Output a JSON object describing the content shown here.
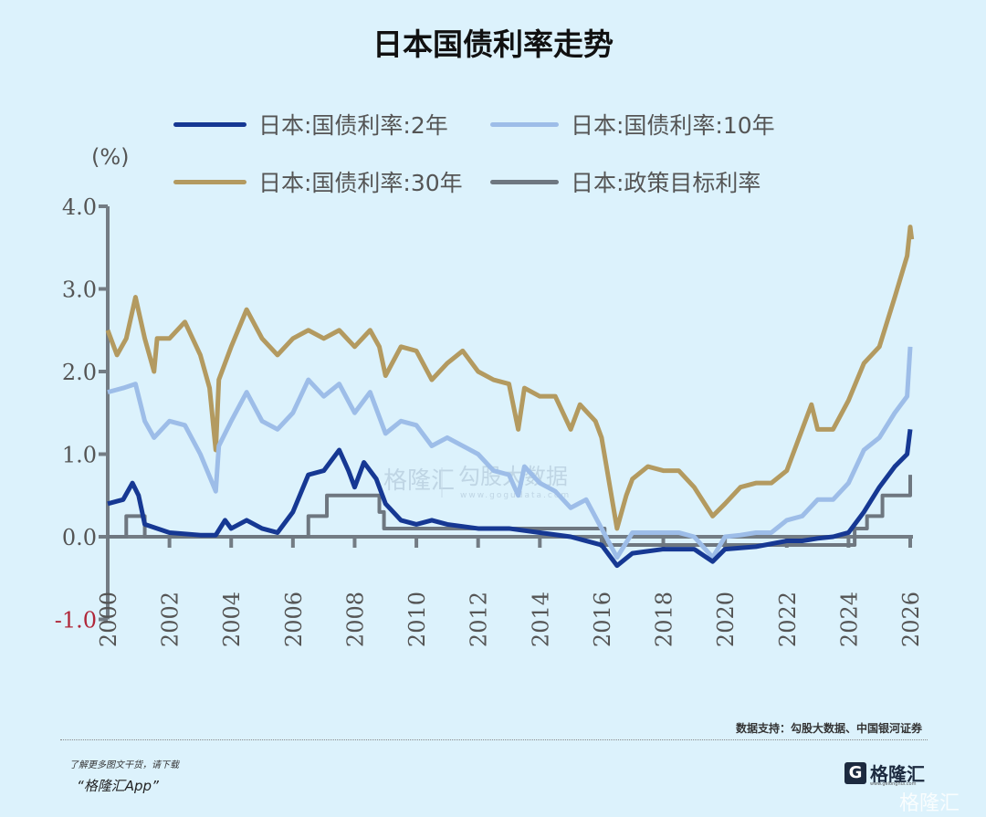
{
  "chart_data": {
    "type": "line",
    "title": "日本国债利率走势",
    "unit_label": "(%)",
    "xlim": [
      2000,
      2026
    ],
    "ylim": [
      -1.0,
      4.0
    ],
    "yticks": [
      "4.0",
      "3.0",
      "2.0",
      "1.0",
      "0.0",
      "-1.0"
    ],
    "ytick_values": [
      4.0,
      3.0,
      2.0,
      1.0,
      0.0,
      -1.0
    ],
    "xticks": [
      "2000",
      "2002",
      "2004",
      "2006",
      "2008",
      "2010",
      "2012",
      "2014",
      "2016",
      "2018",
      "2020",
      "2022",
      "2024",
      "2026"
    ],
    "grid": false,
    "legend_placement": "top",
    "series": [
      {
        "name": "日本:国债利率:2年",
        "color": "#163893",
        "x": [
          2000,
          2000.5,
          2000.8,
          2001.0,
          2001.2,
          2002.0,
          2003.0,
          2003.5,
          2003.8,
          2004.0,
          2004.5,
          2005.0,
          2005.5,
          2006.0,
          2006.5,
          2007.0,
          2007.5,
          2007.8,
          2008.0,
          2008.3,
          2008.7,
          2009.0,
          2009.5,
          2010.0,
          2010.5,
          2011.0,
          2012.0,
          2013.0,
          2014.0,
          2015.0,
          2016.0,
          2016.5,
          2017.0,
          2018.0,
          2019.0,
          2019.6,
          2020.0,
          2021.0,
          2022.0,
          2022.5,
          2023.0,
          2023.5,
          2024.0,
          2024.5,
          2025.0,
          2025.5,
          2025.9,
          2026.0
        ],
        "y": [
          0.4,
          0.45,
          0.65,
          0.5,
          0.15,
          0.05,
          0.02,
          0.02,
          0.2,
          0.1,
          0.2,
          0.1,
          0.05,
          0.3,
          0.75,
          0.8,
          1.05,
          0.8,
          0.6,
          0.9,
          0.7,
          0.4,
          0.2,
          0.15,
          0.2,
          0.15,
          0.1,
          0.1,
          0.05,
          0.0,
          -0.1,
          -0.35,
          -0.2,
          -0.15,
          -0.15,
          -0.3,
          -0.15,
          -0.12,
          -0.05,
          -0.05,
          -0.02,
          0.0,
          0.05,
          0.3,
          0.6,
          0.85,
          1.0,
          1.3
        ]
      },
      {
        "name": "日本:国债利率:10年",
        "color": "#9dbde8",
        "x": [
          2000,
          2000.5,
          2000.9,
          2001.2,
          2001.5,
          2002.0,
          2002.5,
          2003.0,
          2003.5,
          2003.6,
          2004.0,
          2004.5,
          2005.0,
          2005.5,
          2006.0,
          2006.5,
          2007.0,
          2007.5,
          2008.0,
          2008.5,
          2009.0,
          2009.5,
          2010.0,
          2010.5,
          2011.0,
          2011.5,
          2012.0,
          2012.5,
          2013.0,
          2013.3,
          2013.5,
          2014.0,
          2014.5,
          2015.0,
          2015.5,
          2016.0,
          2016.5,
          2017.0,
          2017.5,
          2018.0,
          2018.5,
          2019.0,
          2019.6,
          2020.0,
          2020.5,
          2021.0,
          2021.5,
          2022.0,
          2022.5,
          2023.0,
          2023.5,
          2024.0,
          2024.5,
          2025.0,
          2025.5,
          2025.9,
          2026.0
        ],
        "y": [
          1.75,
          1.8,
          1.85,
          1.4,
          1.2,
          1.4,
          1.35,
          1.0,
          0.55,
          1.1,
          1.4,
          1.75,
          1.4,
          1.3,
          1.5,
          1.9,
          1.7,
          1.85,
          1.5,
          1.75,
          1.25,
          1.4,
          1.35,
          1.1,
          1.2,
          1.1,
          1.0,
          0.8,
          0.75,
          0.5,
          0.85,
          0.65,
          0.55,
          0.35,
          0.45,
          0.1,
          -0.25,
          0.05,
          0.05,
          0.05,
          0.05,
          0.0,
          -0.25,
          0.0,
          0.02,
          0.05,
          0.05,
          0.2,
          0.25,
          0.45,
          0.45,
          0.65,
          1.05,
          1.2,
          1.5,
          1.7,
          2.3
        ]
      },
      {
        "name": "日本:国债利率:30年",
        "color": "#b39a60",
        "x": [
          2000,
          2000.3,
          2000.6,
          2000.9,
          2001.2,
          2001.5,
          2001.6,
          2002.0,
          2002.5,
          2003.0,
          2003.3,
          2003.5,
          2003.6,
          2004.0,
          2004.5,
          2005.0,
          2005.5,
          2006.0,
          2006.5,
          2007.0,
          2007.5,
          2008.0,
          2008.5,
          2008.8,
          2009.0,
          2009.5,
          2010.0,
          2010.5,
          2011.0,
          2011.5,
          2012.0,
          2012.5,
          2013.0,
          2013.3,
          2013.5,
          2014.0,
          2014.5,
          2015.0,
          2015.3,
          2015.8,
          2016.0,
          2016.5,
          2016.8,
          2017.0,
          2017.5,
          2018.0,
          2018.5,
          2019.0,
          2019.6,
          2020.0,
          2020.5,
          2021.0,
          2021.5,
          2022.0,
          2022.5,
          2022.8,
          2023.0,
          2023.5,
          2024.0,
          2024.5,
          2025.0,
          2025.5,
          2025.9,
          2026.0,
          2026.05
        ],
        "y": [
          2.5,
          2.2,
          2.4,
          2.9,
          2.4,
          2.0,
          2.4,
          2.4,
          2.6,
          2.2,
          1.8,
          1.05,
          1.9,
          2.3,
          2.75,
          2.4,
          2.2,
          2.4,
          2.5,
          2.4,
          2.5,
          2.3,
          2.5,
          2.3,
          1.95,
          2.3,
          2.25,
          1.9,
          2.1,
          2.25,
          2.0,
          1.9,
          1.85,
          1.3,
          1.8,
          1.7,
          1.7,
          1.3,
          1.6,
          1.4,
          1.2,
          0.1,
          0.5,
          0.7,
          0.85,
          0.8,
          0.8,
          0.6,
          0.25,
          0.4,
          0.6,
          0.65,
          0.65,
          0.8,
          1.3,
          1.6,
          1.3,
          1.3,
          1.65,
          2.1,
          2.3,
          2.9,
          3.4,
          3.75,
          3.6
        ]
      },
      {
        "name": "日本:政策目标利率",
        "color": "#6e7780",
        "step": true,
        "x": [
          2000,
          2000.6,
          2001.2,
          2006.5,
          2007.1,
          2008.8,
          2008.95,
          2016.1,
          2024.2,
          2024.6,
          2025.1,
          2026.0
        ],
        "y": [
          0.0,
          0.25,
          0.0,
          0.25,
          0.5,
          0.3,
          0.1,
          -0.1,
          0.1,
          0.25,
          0.5,
          0.75
        ]
      }
    ],
    "source": "数据支持：勾股大数据、中国银河证券"
  },
  "watermark": {
    "brand": "格隆汇",
    "brand2": "勾股大数据",
    "url": "www.gogudata.com"
  },
  "footer": {
    "promo_line1": "了解更多图文干货，请下载",
    "promo_line2": "“格隆汇App”",
    "logo_text": "格隆汇",
    "logo_url": "www.gelonghui.com",
    "corner_watermark": "格隆汇"
  }
}
